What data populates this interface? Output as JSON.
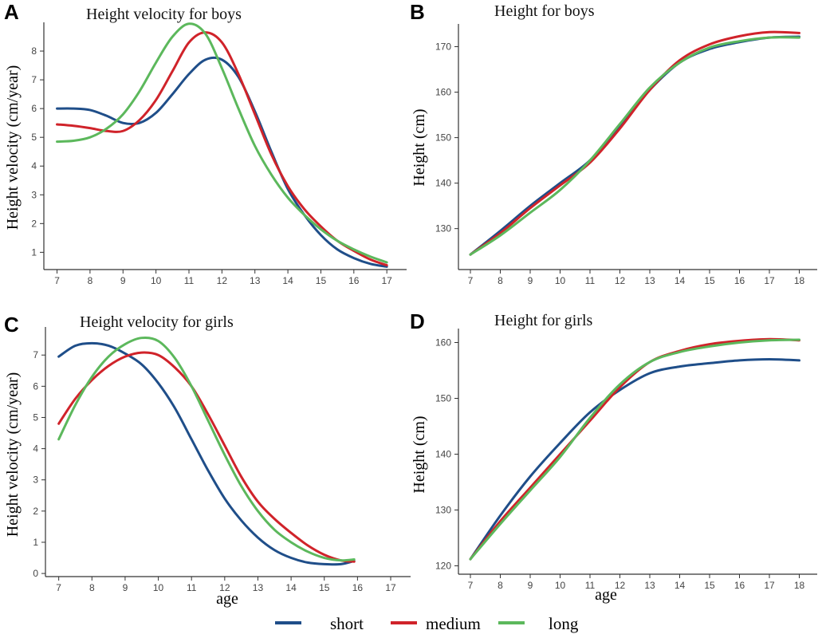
{
  "legend": [
    {
      "name": "short",
      "color": "#1f4e89"
    },
    {
      "name": "medium",
      "color": "#d0232a"
    },
    {
      "name": "long",
      "color": "#5cb85c"
    }
  ],
  "chart_data": [
    {
      "id": "A",
      "type": "line",
      "letter": "A",
      "title": "Height velocity for boys",
      "xlabel": "",
      "ylabel": "Height velocity (cm/year)",
      "xlim": [
        6.6,
        17.6
      ],
      "ylim": [
        0.4,
        9.0
      ],
      "xticks": [
        7,
        8,
        9,
        10,
        11,
        12,
        13,
        14,
        15,
        16,
        17
      ],
      "yticks": [
        1,
        2,
        3,
        4,
        5,
        6,
        7,
        8
      ],
      "series": [
        {
          "name": "short",
          "color": "#1f4e89",
          "x": [
            7,
            7.5,
            8,
            8.5,
            9,
            9.5,
            10,
            10.5,
            11,
            11.5,
            12,
            12.5,
            13,
            13.5,
            14,
            14.5,
            15,
            15.5,
            16,
            16.5,
            17
          ],
          "y": [
            6.0,
            6.0,
            5.95,
            5.75,
            5.5,
            5.5,
            5.85,
            6.5,
            7.2,
            7.7,
            7.7,
            7.1,
            5.9,
            4.5,
            3.2,
            2.3,
            1.6,
            1.1,
            0.8,
            0.6,
            0.5
          ]
        },
        {
          "name": "medium",
          "color": "#d0232a",
          "x": [
            7,
            7.5,
            8,
            8.5,
            9,
            9.5,
            10,
            10.5,
            11,
            11.5,
            12,
            12.5,
            13,
            13.5,
            14,
            14.5,
            15,
            15.5,
            16,
            16.5,
            17
          ],
          "y": [
            5.45,
            5.4,
            5.32,
            5.22,
            5.22,
            5.6,
            6.3,
            7.3,
            8.3,
            8.65,
            8.3,
            7.2,
            5.8,
            4.4,
            3.3,
            2.5,
            1.9,
            1.4,
            1.05,
            0.75,
            0.55
          ]
        },
        {
          "name": "long",
          "color": "#5cb85c",
          "x": [
            7,
            7.5,
            8,
            8.5,
            9,
            9.5,
            10,
            10.5,
            11,
            11.5,
            12,
            12.5,
            13,
            13.5,
            14,
            14.5,
            15,
            15.5,
            16,
            16.5,
            17
          ],
          "y": [
            4.85,
            4.88,
            5.0,
            5.3,
            5.8,
            6.6,
            7.6,
            8.5,
            8.95,
            8.6,
            7.4,
            6.0,
            4.7,
            3.7,
            2.9,
            2.3,
            1.8,
            1.4,
            1.1,
            0.85,
            0.65
          ]
        }
      ]
    },
    {
      "id": "B",
      "type": "line",
      "letter": "B",
      "title": "Height for boys",
      "xlabel": "",
      "ylabel": "Height (cm)",
      "xlim": [
        6.6,
        18.6
      ],
      "ylim": [
        121,
        175
      ],
      "xticks": [
        7,
        8,
        9,
        10,
        11,
        12,
        13,
        14,
        15,
        16,
        17,
        18
      ],
      "yticks": [
        130,
        140,
        150,
        160,
        170
      ],
      "series": [
        {
          "name": "short",
          "color": "#1f4e89",
          "x": [
            7,
            8,
            9,
            10,
            11,
            12,
            13,
            14,
            15,
            16,
            17,
            18
          ],
          "y": [
            124.3,
            129.5,
            135.0,
            140.0,
            145.0,
            152.5,
            160.5,
            166.5,
            169.5,
            171.0,
            172.0,
            172.2
          ]
        },
        {
          "name": "medium",
          "color": "#d0232a",
          "x": [
            7,
            8,
            9,
            10,
            11,
            12,
            13,
            14,
            15,
            16,
            17,
            18
          ],
          "y": [
            124.3,
            129.0,
            134.5,
            139.5,
            144.5,
            152.0,
            160.5,
            167.0,
            170.5,
            172.3,
            173.2,
            173.0
          ]
        },
        {
          "name": "long",
          "color": "#5cb85c",
          "x": [
            7,
            8,
            9,
            10,
            11,
            12,
            13,
            14,
            15,
            16,
            17,
            18
          ],
          "y": [
            124.3,
            128.5,
            133.5,
            138.5,
            145.0,
            153.0,
            161.0,
            166.5,
            169.8,
            171.2,
            172.0,
            172.0
          ]
        }
      ]
    },
    {
      "id": "C",
      "type": "line",
      "letter": "C",
      "title": "Height velocity for girls",
      "xlabel": "age",
      "ylabel": "Height velocity (cm/year)",
      "xlim": [
        6.6,
        17.6
      ],
      "ylim": [
        -0.1,
        7.9
      ],
      "xticks": [
        7,
        8,
        9,
        10,
        11,
        12,
        13,
        14,
        15,
        16,
        17
      ],
      "yticks": [
        0,
        1,
        2,
        3,
        4,
        5,
        6,
        7
      ],
      "series": [
        {
          "name": "short",
          "color": "#1f4e89",
          "x": [
            7,
            7.5,
            8,
            8.5,
            9,
            9.5,
            10,
            10.5,
            11,
            11.5,
            12,
            12.5,
            13,
            13.5,
            14,
            14.5,
            15,
            15.5,
            15.9
          ],
          "y": [
            6.95,
            7.3,
            7.38,
            7.3,
            7.05,
            6.7,
            6.1,
            5.3,
            4.3,
            3.3,
            2.4,
            1.7,
            1.15,
            0.75,
            0.5,
            0.35,
            0.3,
            0.3,
            0.4
          ]
        },
        {
          "name": "medium",
          "color": "#d0232a",
          "x": [
            7,
            7.5,
            8,
            8.5,
            9,
            9.5,
            10,
            10.5,
            11,
            11.5,
            12,
            12.5,
            13,
            13.5,
            14,
            14.5,
            15,
            15.5,
            15.9
          ],
          "y": [
            4.8,
            5.6,
            6.2,
            6.65,
            6.95,
            7.08,
            7.0,
            6.6,
            6.0,
            5.1,
            4.1,
            3.1,
            2.3,
            1.75,
            1.3,
            0.9,
            0.6,
            0.42,
            0.38
          ]
        },
        {
          "name": "long",
          "color": "#5cb85c",
          "x": [
            7,
            7.5,
            8,
            8.5,
            9,
            9.5,
            10,
            10.5,
            11,
            11.5,
            12,
            12.5,
            13,
            13.5,
            14,
            14.5,
            15,
            15.5,
            15.9
          ],
          "y": [
            4.3,
            5.4,
            6.3,
            6.95,
            7.35,
            7.55,
            7.45,
            6.9,
            6.0,
            4.9,
            3.8,
            2.8,
            2.0,
            1.4,
            1.0,
            0.7,
            0.5,
            0.42,
            0.45
          ]
        }
      ]
    },
    {
      "id": "D",
      "type": "line",
      "letter": "D",
      "title": "Height for girls",
      "xlabel": "age",
      "ylabel": "Height (cm)",
      "xlim": [
        6.6,
        18.6
      ],
      "ylim": [
        118.5,
        162.5
      ],
      "xticks": [
        7,
        8,
        9,
        10,
        11,
        12,
        13,
        14,
        15,
        16,
        17,
        18
      ],
      "yticks": [
        120,
        130,
        140,
        150,
        160
      ],
      "series": [
        {
          "name": "short",
          "color": "#1f4e89",
          "x": [
            7,
            8,
            9,
            10,
            11,
            12,
            13,
            14,
            15,
            16,
            17,
            18
          ],
          "y": [
            121.2,
            129.0,
            136.0,
            142.0,
            147.5,
            151.5,
            154.5,
            155.7,
            156.3,
            156.8,
            157.0,
            156.8
          ]
        },
        {
          "name": "medium",
          "color": "#d0232a",
          "x": [
            7,
            8,
            9,
            10,
            11,
            12,
            13,
            14,
            15,
            16,
            17,
            18
          ],
          "y": [
            121.2,
            128.0,
            134.0,
            140.0,
            146.0,
            152.0,
            156.5,
            158.5,
            159.7,
            160.3,
            160.6,
            160.4
          ]
        },
        {
          "name": "long",
          "color": "#5cb85c",
          "x": [
            7,
            8,
            9,
            10,
            11,
            12,
            13,
            14,
            15,
            16,
            17,
            18
          ],
          "y": [
            121.2,
            127.5,
            133.5,
            139.5,
            146.5,
            152.5,
            156.5,
            158.3,
            159.3,
            160.0,
            160.4,
            160.5
          ]
        }
      ]
    }
  ]
}
